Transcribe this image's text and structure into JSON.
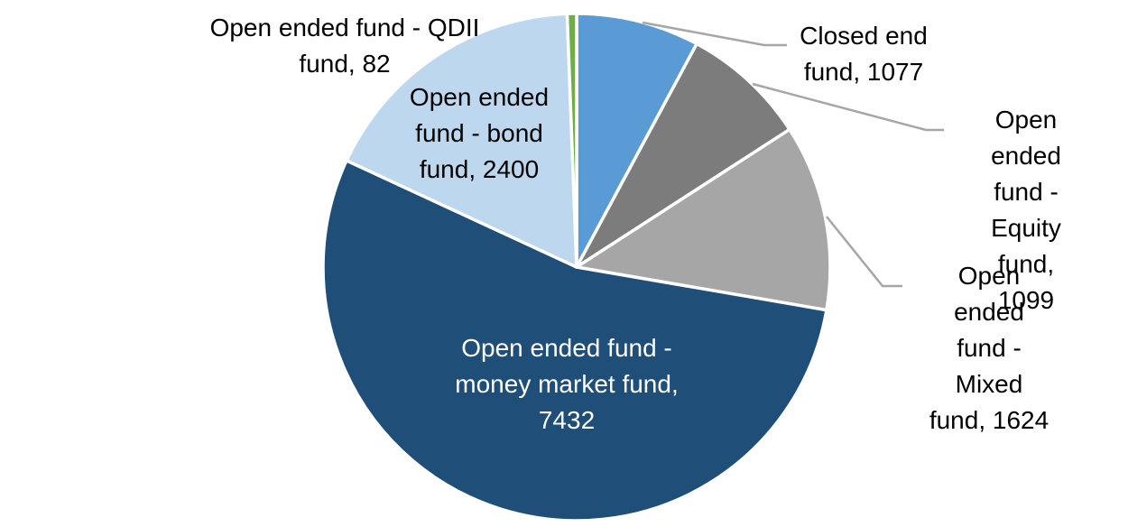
{
  "chart_data": {
    "type": "pie",
    "title": "",
    "legend": "none",
    "grid": "off",
    "start_angle_deg": 0,
    "direction": "clockwise",
    "total": 13714,
    "categories": [
      "Closed end fund",
      "Open ended fund - Equity fund",
      "Open ended fund - Mixed fund",
      "Open ended fund - money market fund",
      "Open ended fund - bond fund",
      "Open ended fund - QDII fund"
    ],
    "values": [
      1077,
      1099,
      1624,
      7432,
      2400,
      82
    ],
    "colors": [
      "#5B9BD5",
      "#7C7C7C",
      "#A6A6A6",
      "#1F4E79",
      "#BDD7EE",
      "#70AD47"
    ],
    "slice_border_color": "#FFFFFF",
    "leader_line_color": "#A6A6A6",
    "label_color_outside": "#000000",
    "label_color_inside": "#FFFFFF",
    "data_labels": {
      "closed_end": "Closed end\nfund, 1077",
      "equity": "Open ended\nfund - Equity\nfund, 1099",
      "mixed": "Open ended\nfund - Mixed\nfund, 1624",
      "money_market": "Open ended fund -\nmoney market fund,\n7432",
      "bond": "Open ended\nfund - bond\nfund, 2400",
      "qdii": "Open ended fund - QDII\nfund, 82"
    }
  }
}
